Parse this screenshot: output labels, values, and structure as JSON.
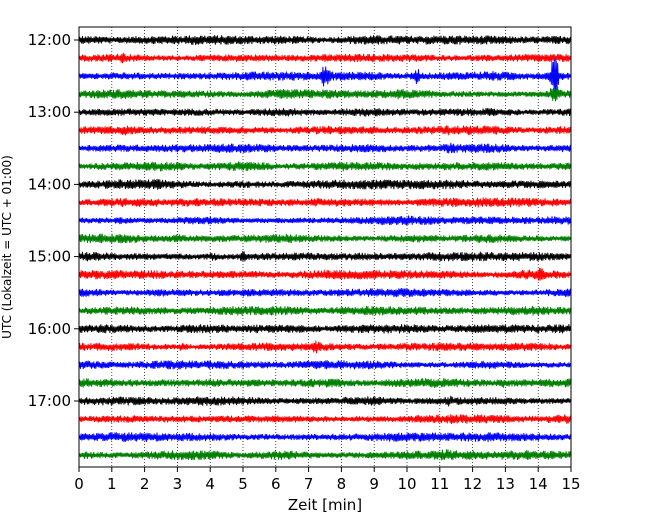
{
  "chart_data": {
    "type": "line",
    "xlabel": "Zeit  [min]",
    "ylabel": "UTC (Lokalzeit = UTC + 01:00)",
    "xlim": [
      0,
      15
    ],
    "x_ticks": [
      0,
      1,
      2,
      3,
      4,
      5,
      6,
      7,
      8,
      9,
      10,
      11,
      12,
      13,
      14,
      15
    ],
    "y_tick_labels": [
      "12:00",
      "13:00",
      "14:00",
      "15:00",
      "16:00",
      "17:00"
    ],
    "rows_per_hour": 4,
    "row_minutes": 15,
    "start_time": "12:00",
    "color_cycle": [
      "#000000",
      "#ff0000",
      "#0000ff",
      "#008000"
    ],
    "grid": "x dotted",
    "series": [
      {
        "start": "12:00",
        "color": "#000000",
        "events": []
      },
      {
        "start": "12:15",
        "color": "#ff0000",
        "events": [
          {
            "x": 1.3,
            "amp": 1.6
          }
        ]
      },
      {
        "start": "12:30",
        "color": "#0000ff",
        "events": [
          {
            "x": 7.5,
            "amp": 3.2
          },
          {
            "x": 10.3,
            "amp": 2.6
          },
          {
            "x": 14.5,
            "amp": 7
          }
        ]
      },
      {
        "start": "12:45",
        "color": "#008000",
        "events": [
          {
            "x": 14.5,
            "amp": 3.5
          },
          {
            "x": 9.8,
            "amp": 1.4
          }
        ]
      },
      {
        "start": "13:00",
        "color": "#000000",
        "events": []
      },
      {
        "start": "13:15",
        "color": "#ff0000",
        "events": [
          {
            "x": 1.4,
            "amp": 1.3
          }
        ]
      },
      {
        "start": "13:30",
        "color": "#0000ff",
        "events": [
          {
            "x": 11.3,
            "amp": 1.8
          }
        ]
      },
      {
        "start": "13:45",
        "color": "#008000",
        "events": [
          {
            "x": 8.0,
            "amp": 1.3
          }
        ]
      },
      {
        "start": "14:00",
        "color": "#000000",
        "events": [
          {
            "x": 2.3,
            "amp": 1.3
          }
        ]
      },
      {
        "start": "14:15",
        "color": "#ff0000",
        "events": []
      },
      {
        "start": "14:30",
        "color": "#0000ff",
        "events": [
          {
            "x": 1.3,
            "amp": 1.2
          }
        ]
      },
      {
        "start": "14:45",
        "color": "#008000",
        "events": [
          {
            "x": 3.0,
            "amp": 1.6
          }
        ]
      },
      {
        "start": "15:00",
        "color": "#000000",
        "events": [
          {
            "x": 5.0,
            "amp": 1.8
          },
          {
            "x": 4.1,
            "amp": 1.4
          }
        ]
      },
      {
        "start": "15:15",
        "color": "#ff0000",
        "events": [
          {
            "x": 14.1,
            "amp": 2.0
          }
        ]
      },
      {
        "start": "15:30",
        "color": "#0000ff",
        "events": []
      },
      {
        "start": "15:45",
        "color": "#008000",
        "events": [
          {
            "x": 1.6,
            "amp": 1.2
          }
        ]
      },
      {
        "start": "16:00",
        "color": "#000000",
        "events": [
          {
            "x": 5.3,
            "amp": 1.3
          }
        ]
      },
      {
        "start": "16:15",
        "color": "#ff0000",
        "events": [
          {
            "x": 7.2,
            "amp": 2.2
          },
          {
            "x": 3.1,
            "amp": 1.4
          }
        ]
      },
      {
        "start": "16:30",
        "color": "#0000ff",
        "events": []
      },
      {
        "start": "16:45",
        "color": "#008000",
        "events": [
          {
            "x": 12.9,
            "amp": 1.5
          }
        ]
      },
      {
        "start": "17:00",
        "color": "#000000",
        "events": [
          {
            "x": 11.3,
            "amp": 1.6
          }
        ]
      },
      {
        "start": "17:15",
        "color": "#ff0000",
        "events": [
          {
            "x": 10.3,
            "amp": 1.3
          }
        ]
      },
      {
        "start": "17:30",
        "color": "#0000ff",
        "events": []
      },
      {
        "start": "17:45",
        "color": "#008000",
        "events": [
          {
            "x": 11.2,
            "amp": 1.6
          }
        ]
      }
    ]
  }
}
